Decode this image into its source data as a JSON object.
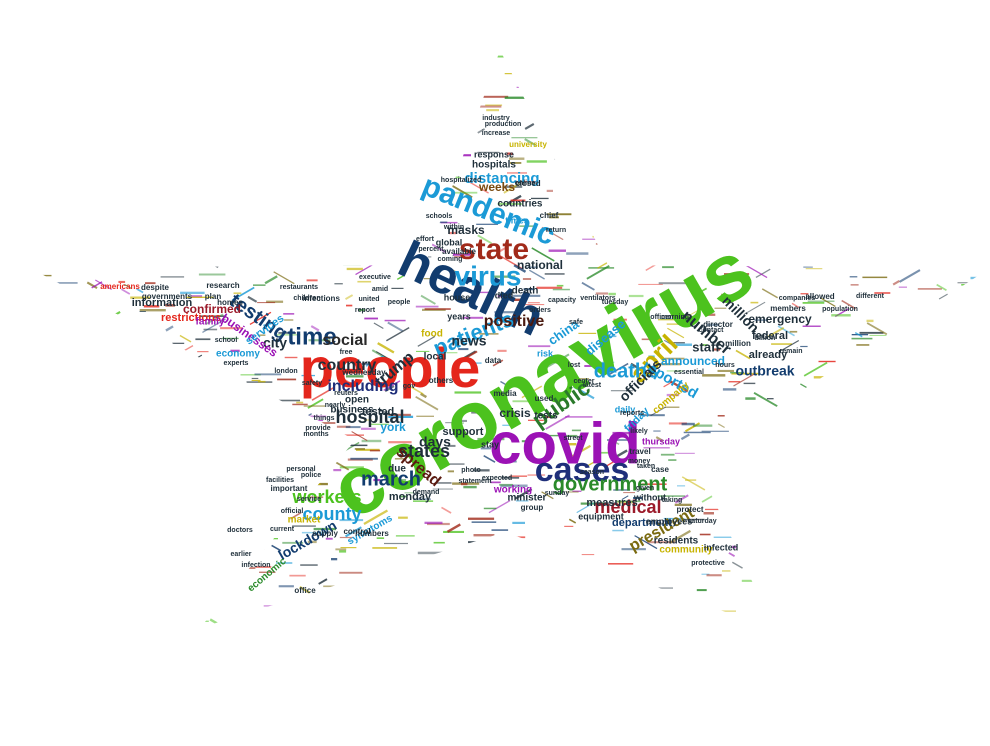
{
  "words": [
    {
      "text": "coronavirus",
      "color": "#4cc21e"
    },
    {
      "text": "people",
      "color": "#e4261c"
    },
    {
      "text": "covid",
      "color": "#9b12b5"
    },
    {
      "text": "health",
      "color": "#123c6e"
    },
    {
      "text": "cases",
      "color": "#1f2f7a"
    },
    {
      "text": "pandemic",
      "color": "#1b9ad6"
    },
    {
      "text": "virus",
      "color": "#1b9ad6"
    },
    {
      "text": "state",
      "color": "#a12a1a"
    },
    {
      "text": "government",
      "color": "#2a8a2a"
    },
    {
      "text": "april",
      "color": "#c7b300"
    },
    {
      "text": "public",
      "color": "#2a7a2a"
    },
    {
      "text": "patients",
      "color": "#1b9ad6"
    },
    {
      "text": "time",
      "color": "#123c6e"
    },
    {
      "text": "testing",
      "color": "#123c6e"
    },
    {
      "text": "deaths",
      "color": "#1b9ad6"
    },
    {
      "text": "medical",
      "color": "#9b1a2a"
    },
    {
      "text": "march",
      "color": "#123c6e"
    },
    {
      "text": "president",
      "color": "#7a6a10"
    },
    {
      "text": "states",
      "color": "#1f2f3a"
    },
    {
      "text": "workers",
      "color": "#4cc21e"
    },
    {
      "text": "county",
      "color": "#1b9ad6"
    },
    {
      "text": "social",
      "color": "#2a2a2a"
    },
    {
      "text": "country",
      "color": "#1f2f3a"
    },
    {
      "text": "trump",
      "color": "#1f2f3a"
    },
    {
      "text": "including",
      "color": "#1f2f7a"
    },
    {
      "text": "hospital",
      "color": "#1f2f3a"
    },
    {
      "text": "spread",
      "color": "#5a1a10"
    },
    {
      "text": "positive",
      "color": "#4a1a10"
    },
    {
      "text": "news",
      "color": "#1f2f3a"
    },
    {
      "text": "number",
      "color": "#1f2f3a"
    },
    {
      "text": "million",
      "color": "#1f2f3a"
    },
    {
      "text": "reported",
      "color": "#1b9ad6"
    },
    {
      "text": "officials",
      "color": "#1f2f3a"
    },
    {
      "text": "outbreak",
      "color": "#123c6e"
    },
    {
      "text": "lockdown",
      "color": "#123c6e"
    },
    {
      "text": "distancing",
      "color": "#1b9ad6"
    },
    {
      "text": "city",
      "color": "#1f2f3a"
    },
    {
      "text": "days",
      "color": "#1f2f3a"
    },
    {
      "text": "crisis",
      "color": "#1f2f3a"
    },
    {
      "text": "masks",
      "color": "#1f2f3a"
    },
    {
      "text": "national",
      "color": "#1f2f3a"
    },
    {
      "text": "weeks",
      "color": "#7a4a10"
    },
    {
      "text": "staff",
      "color": "#1f2f3a"
    },
    {
      "text": "announced",
      "color": "#1b9ad6"
    },
    {
      "text": "disease",
      "color": "#1b9ad6"
    },
    {
      "text": "china",
      "color": "#1b9ad6"
    },
    {
      "text": "confirmed",
      "color": "#9b1a2a"
    },
    {
      "text": "businesses",
      "color": "#9b12b5"
    },
    {
      "text": "services",
      "color": "#1b9ad6"
    },
    {
      "text": "information",
      "color": "#1f2f3a"
    },
    {
      "text": "restrictions",
      "color": "#e4261c"
    },
    {
      "text": "emergency",
      "color": "#1f2f3a"
    },
    {
      "text": "federal",
      "color": "#1f2f3a"
    },
    {
      "text": "already",
      "color": "#1f2f3a"
    },
    {
      "text": "tested",
      "color": "#1f2f3a"
    },
    {
      "text": "york",
      "color": "#1b9ad6"
    },
    {
      "text": "support",
      "color": "#1f2f3a"
    },
    {
      "text": "monday",
      "color": "#1f2f3a"
    },
    {
      "text": "working",
      "color": "#9b12b5"
    },
    {
      "text": "due",
      "color": "#1f2f3a"
    },
    {
      "text": "minister",
      "color": "#1f2f3a"
    },
    {
      "text": "tests",
      "color": "#1f2f3a"
    },
    {
      "text": "friday",
      "color": "#1b9ad6"
    },
    {
      "text": "company",
      "color": "#c7b300"
    },
    {
      "text": "measures",
      "color": "#1f2f3a"
    },
    {
      "text": "department",
      "color": "#123c6e"
    },
    {
      "text": "residents",
      "color": "#1f2f3a"
    },
    {
      "text": "community",
      "color": "#c7b300"
    },
    {
      "text": "economy",
      "color": "#1b9ad6"
    },
    {
      "text": "economic",
      "color": "#2a8a2a"
    },
    {
      "text": "symptoms",
      "color": "#1b9ad6"
    },
    {
      "text": "business",
      "color": "#1f2f3a"
    },
    {
      "text": "market",
      "color": "#c7b300"
    },
    {
      "text": "open",
      "color": "#1f2f3a"
    },
    {
      "text": "countries",
      "color": "#1f2f3a"
    },
    {
      "text": "hospitals",
      "color": "#1f2f3a"
    },
    {
      "text": "response",
      "color": "#1f2f3a"
    },
    {
      "text": "death",
      "color": "#1f2f3a"
    },
    {
      "text": "local",
      "color": "#1f2f3a"
    },
    {
      "text": "family",
      "color": "#9b12b5"
    },
    {
      "text": "food",
      "color": "#c7b300"
    },
    {
      "text": "years",
      "color": "#1f2f3a"
    },
    {
      "text": "house",
      "color": "#1f2f3a"
    },
    {
      "text": "died",
      "color": "#1f2f3a"
    },
    {
      "text": "global",
      "color": "#1f2f3a"
    },
    {
      "text": "daily",
      "color": "#1b9ad6"
    },
    {
      "text": "risk",
      "color": "#1b9ad6"
    },
    {
      "text": "stay",
      "color": "#1f2f3a"
    },
    {
      "text": "infected",
      "color": "#1f2f3a"
    },
    {
      "text": "travel",
      "color": "#1f2f3a"
    },
    {
      "text": "case",
      "color": "#1f2f3a"
    },
    {
      "text": "employees",
      "color": "#1f2f3a"
    },
    {
      "text": "without",
      "color": "#1f2f3a"
    },
    {
      "text": "million",
      "color": "#1f2f3a"
    },
    {
      "text": "protect",
      "color": "#1f2f3a"
    },
    {
      "text": "thursday",
      "color": "#9b12b5"
    },
    {
      "text": "wednesday",
      "color": "#1f2f3a"
    },
    {
      "text": "numbers",
      "color": "#1f2f3a"
    },
    {
      "text": "office",
      "color": "#1f2f3a"
    },
    {
      "text": "control",
      "color": "#1f2f3a"
    },
    {
      "text": "supply",
      "color": "#1f2f3a"
    },
    {
      "text": "equipment",
      "color": "#1f2f3a"
    },
    {
      "text": "group",
      "color": "#1f2f3a"
    },
    {
      "text": "others",
      "color": "#1f2f3a"
    },
    {
      "text": "used",
      "color": "#1f2f3a"
    },
    {
      "text": "media",
      "color": "#1f2f3a"
    },
    {
      "text": "data",
      "color": "#1f2f3a"
    },
    {
      "text": "university",
      "color": "#c7b300"
    },
    {
      "text": "industry",
      "color": "#1f2f3a"
    },
    {
      "text": "production",
      "color": "#1f2f3a"
    },
    {
      "text": "increase",
      "color": "#1f2f3a"
    },
    {
      "text": "closed",
      "color": "#1f2f3a"
    },
    {
      "text": "online",
      "color": "#1f2f3a"
    },
    {
      "text": "times",
      "color": "#1b9ad6"
    },
    {
      "text": "available",
      "color": "#1f2f3a"
    },
    {
      "text": "within",
      "color": "#1f2f3a"
    },
    {
      "text": "schools",
      "color": "#1f2f3a"
    },
    {
      "text": "percent",
      "color": "#1f2f3a"
    },
    {
      "text": "chief",
      "color": "#1f2f3a"
    },
    {
      "text": "coming",
      "color": "#1f2f3a"
    },
    {
      "text": "director",
      "color": "#1f2f3a"
    },
    {
      "text": "members",
      "color": "#1f2f3a"
    },
    {
      "text": "billion",
      "color": "#1f2f3a"
    },
    {
      "text": "remain",
      "color": "#1f2f3a"
    },
    {
      "text": "allowed",
      "color": "#1f2f3a"
    },
    {
      "text": "different",
      "color": "#1f2f3a"
    },
    {
      "text": "population",
      "color": "#1f2f3a"
    },
    {
      "text": "companies",
      "color": "#1f2f3a"
    },
    {
      "text": "homes",
      "color": "#1f2f3a"
    },
    {
      "text": "plan",
      "color": "#1f2f3a"
    },
    {
      "text": "governments",
      "color": "#1f2f3a"
    },
    {
      "text": "americans",
      "color": "#e4261c"
    },
    {
      "text": "despite",
      "color": "#1f2f3a"
    },
    {
      "text": "research",
      "color": "#1f2f3a"
    },
    {
      "text": "children",
      "color": "#1f2f3a"
    },
    {
      "text": "infections",
      "color": "#1f2f3a"
    },
    {
      "text": "london",
      "color": "#1f2f3a"
    },
    {
      "text": "safety",
      "color": "#1f2f3a"
    },
    {
      "text": "school",
      "color": "#1f2f3a"
    },
    {
      "text": "experts",
      "color": "#1f2f3a"
    },
    {
      "text": "police",
      "color": "#1f2f3a"
    },
    {
      "text": "service",
      "color": "#1f2f3a"
    },
    {
      "text": "things",
      "color": "#1f2f3a"
    },
    {
      "text": "months",
      "color": "#1f2f3a"
    },
    {
      "text": "provide",
      "color": "#1f2f3a"
    },
    {
      "text": "nearly",
      "color": "#1f2f3a"
    },
    {
      "text": "important",
      "color": "#1f2f3a"
    },
    {
      "text": "personal",
      "color": "#1f2f3a"
    },
    {
      "text": "current",
      "color": "#1f2f3a"
    },
    {
      "text": "official",
      "color": "#1f2f3a"
    },
    {
      "text": "doctors",
      "color": "#1f2f3a"
    },
    {
      "text": "earlier",
      "color": "#1f2f3a"
    },
    {
      "text": "infection",
      "color": "#1f2f3a"
    },
    {
      "text": "photo",
      "color": "#1f2f3a"
    },
    {
      "text": "statement",
      "color": "#1f2f3a"
    },
    {
      "text": "expected",
      "color": "#1f2f3a"
    },
    {
      "text": "sunday",
      "color": "#1f2f3a"
    },
    {
      "text": "demand",
      "color": "#1f2f3a"
    },
    {
      "text": "given",
      "color": "#1f2f3a"
    },
    {
      "text": "taking",
      "color": "#1f2f3a"
    },
    {
      "text": "money",
      "color": "#1f2f3a"
    },
    {
      "text": "taken",
      "color": "#1f2f3a"
    },
    {
      "text": "saturday",
      "color": "#1f2f3a"
    },
    {
      "text": "protective",
      "color": "#1f2f3a"
    },
    {
      "text": "likely",
      "color": "#1f2f3a"
    },
    {
      "text": "center",
      "color": "#1f2f3a"
    },
    {
      "text": "reports",
      "color": "#1f2f3a"
    },
    {
      "text": "latest",
      "color": "#1f2f3a"
    },
    {
      "text": "essential",
      "color": "#1f2f3a"
    },
    {
      "text": "hours",
      "color": "#1f2f3a"
    },
    {
      "text": "contact",
      "color": "#1f2f3a"
    },
    {
      "text": "morning",
      "color": "#1f2f3a"
    },
    {
      "text": "officer",
      "color": "#1f2f3a"
    },
    {
      "text": "ventilators",
      "color": "#1f2f3a"
    },
    {
      "text": "tuesday",
      "color": "#1f2f3a"
    },
    {
      "text": "lost",
      "color": "#1f2f3a"
    },
    {
      "text": "safe",
      "color": "#1f2f3a"
    },
    {
      "text": "gov",
      "color": "#1f2f3a"
    },
    {
      "text": "free",
      "color": "#1f2f3a"
    },
    {
      "text": "united",
      "color": "#1f2f3a"
    },
    {
      "text": "executive",
      "color": "#1f2f3a"
    },
    {
      "text": "amid",
      "color": "#1f2f3a"
    },
    {
      "text": "report",
      "color": "#1f2f3a"
    },
    {
      "text": "restaurants",
      "color": "#1f2f3a"
    },
    {
      "text": "people",
      "color": "#1f2f3a"
    },
    {
      "text": "hospitalized",
      "color": "#1f2f3a"
    },
    {
      "text": "orders",
      "color": "#1f2f3a"
    },
    {
      "text": "return",
      "color": "#1f2f3a"
    },
    {
      "text": "effort",
      "color": "#1f2f3a"
    },
    {
      "text": "facilities",
      "color": "#1f2f3a"
    },
    {
      "text": "street",
      "color": "#1f2f3a"
    },
    {
      "text": "capacity",
      "color": "#1f2f3a"
    },
    {
      "text": "reuters",
      "color": "#1f2f3a"
    },
    {
      "text": "season",
      "color": "#1f2f3a"
    }
  ]
}
